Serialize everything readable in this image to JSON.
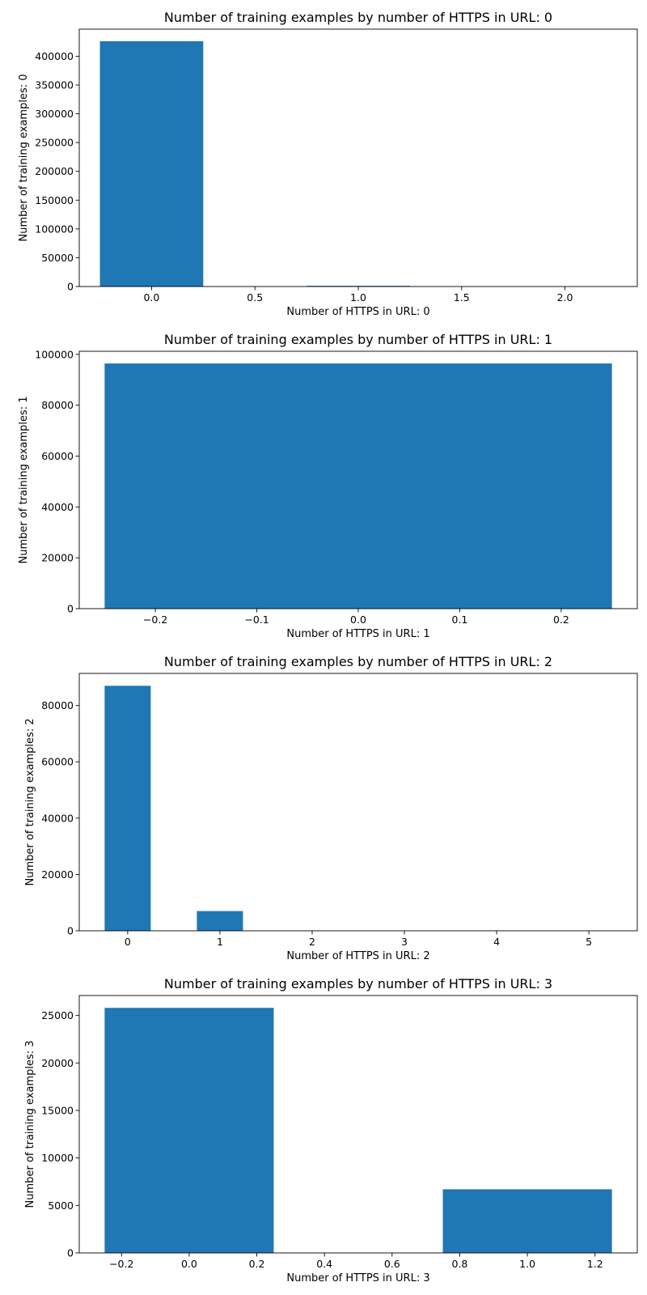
{
  "chart_data": [
    {
      "type": "bar",
      "title": "Number of training examples by number of HTTPS in URL: 0",
      "xlabel": "Number of HTTPS in URL: 0",
      "ylabel": "Number of training examples: 0",
      "x": [
        0,
        1,
        2
      ],
      "values": [
        426000,
        1200,
        20
      ],
      "bar_width": 0.5,
      "xlim": [
        -0.35,
        2.35
      ],
      "ylim": [
        0,
        447000
      ],
      "xticks": [
        0.0,
        0.5,
        1.0,
        1.5,
        2.0
      ],
      "xtick_labels": [
        "0.0",
        "0.5",
        "1.0",
        "1.5",
        "2.0"
      ],
      "yticks": [
        0,
        50000,
        100000,
        150000,
        200000,
        250000,
        300000,
        350000,
        400000
      ],
      "ytick_labels": [
        "0",
        "50000",
        "100000",
        "150000",
        "200000",
        "250000",
        "300000",
        "350000",
        "400000"
      ],
      "bar_color": "#1f77b4",
      "grid": false
    },
    {
      "type": "bar",
      "title": "Number of training examples by number of HTTPS in URL: 1",
      "xlabel": "Number of HTTPS in URL: 1",
      "ylabel": "Number of training examples: 1",
      "x": [
        0
      ],
      "values": [
        96400
      ],
      "bar_width": 0.5,
      "xlim": [
        -0.275,
        0.275
      ],
      "ylim": [
        0,
        101200
      ],
      "xticks": [
        -0.2,
        -0.1,
        0.0,
        0.1,
        0.2
      ],
      "xtick_labels": [
        "−0.2",
        "−0.1",
        "0.0",
        "0.1",
        "0.2"
      ],
      "yticks": [
        0,
        20000,
        40000,
        60000,
        80000,
        100000
      ],
      "ytick_labels": [
        "0",
        "20000",
        "40000",
        "60000",
        "80000",
        "100000"
      ],
      "bar_color": "#1f77b4",
      "grid": false
    },
    {
      "type": "bar",
      "title": "Number of training examples by number of HTTPS in URL: 2",
      "xlabel": "Number of HTTPS in URL: 2",
      "ylabel": "Number of training examples: 2",
      "x": [
        0,
        1,
        2,
        3,
        4,
        5
      ],
      "values": [
        87000,
        7000,
        40,
        10,
        5,
        3
      ],
      "bar_width": 0.5,
      "xlim": [
        -0.525,
        5.525
      ],
      "ylim": [
        0,
        91400
      ],
      "xticks": [
        0,
        1,
        2,
        3,
        4,
        5
      ],
      "xtick_labels": [
        "0",
        "1",
        "2",
        "3",
        "4",
        "5"
      ],
      "yticks": [
        0,
        20000,
        40000,
        60000,
        80000
      ],
      "ytick_labels": [
        "0",
        "20000",
        "40000",
        "60000",
        "80000"
      ],
      "bar_color": "#1f77b4",
      "grid": false
    },
    {
      "type": "bar",
      "title": "Number of training examples by number of HTTPS in URL: 3",
      "xlabel": "Number of HTTPS in URL: 3",
      "ylabel": "Number of training examples: 3",
      "x": [
        0,
        1
      ],
      "values": [
        25800,
        6700
      ],
      "bar_width": 0.5,
      "xlim": [
        -0.325,
        1.325
      ],
      "ylim": [
        0,
        27100
      ],
      "xticks": [
        -0.2,
        0.0,
        0.2,
        0.4,
        0.6,
        0.8,
        1.0,
        1.2
      ],
      "xtick_labels": [
        "−0.2",
        "0.0",
        "0.2",
        "0.4",
        "0.6",
        "0.8",
        "1.0",
        "1.2"
      ],
      "yticks": [
        0,
        5000,
        10000,
        15000,
        20000,
        25000
      ],
      "ytick_labels": [
        "0",
        "5000",
        "10000",
        "15000",
        "20000",
        "25000"
      ],
      "bar_color": "#1f77b4",
      "grid": false
    }
  ]
}
